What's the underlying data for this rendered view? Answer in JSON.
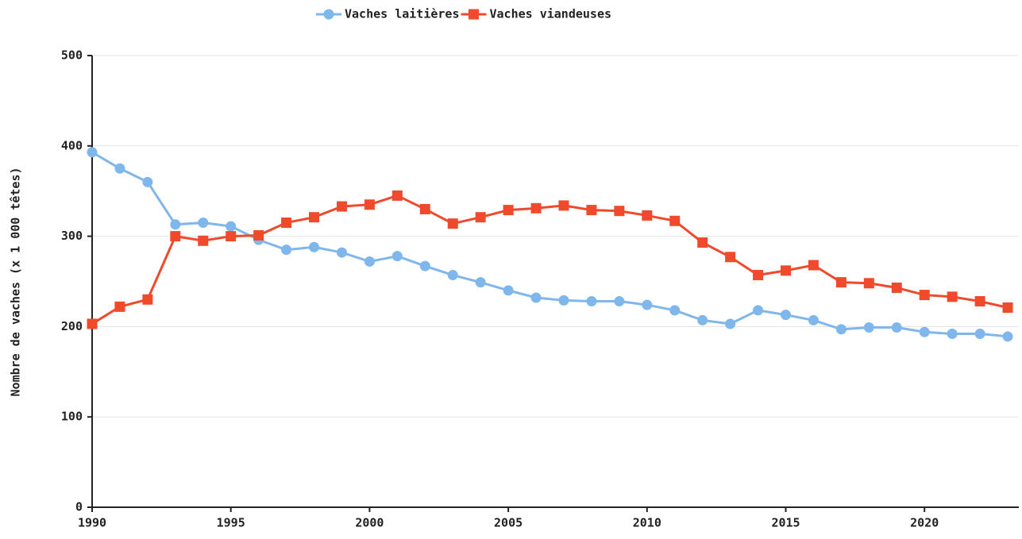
{
  "chart_data": {
    "type": "line",
    "y_label": "Nombre de vaches (x 1 000 têtes)",
    "x": [
      1990,
      1991,
      1992,
      1993,
      1994,
      1995,
      1996,
      1997,
      1998,
      1999,
      2000,
      2001,
      2002,
      2003,
      2004,
      2005,
      2006,
      2007,
      2008,
      2009,
      2010,
      2011,
      2012,
      2013,
      2014,
      2015,
      2016,
      2017,
      2018,
      2019,
      2020,
      2021,
      2022,
      2023
    ],
    "series": [
      {
        "name": "Vaches laitières",
        "color": "#7fb7ec",
        "marker": "circle",
        "values": [
          393,
          375,
          360,
          313,
          315,
          311,
          296,
          285,
          288,
          282,
          272,
          278,
          267,
          257,
          249,
          240,
          232,
          229,
          228,
          228,
          224,
          218,
          207,
          203,
          218,
          213,
          207,
          197,
          199,
          199,
          194,
          192,
          192,
          189
        ]
      },
      {
        "name": "Vaches viandeuses",
        "color": "#ee4a2b",
        "marker": "square",
        "values": [
          203,
          222,
          230,
          300,
          295,
          300,
          301,
          315,
          321,
          333,
          335,
          345,
          330,
          314,
          321,
          329,
          331,
          334,
          329,
          328,
          323,
          317,
          293,
          277,
          257,
          262,
          268,
          249,
          248,
          243,
          235,
          233,
          228,
          221
        ]
      }
    ],
    "xlim": [
      1990,
      2023.4
    ],
    "xticks": [
      1990,
      1995,
      2000,
      2005,
      2010,
      2015,
      2020
    ],
    "ylim": [
      0,
      500
    ],
    "yticks": [
      0,
      100,
      200,
      300,
      400,
      500
    ],
    "grid": true,
    "legend": "top"
  }
}
